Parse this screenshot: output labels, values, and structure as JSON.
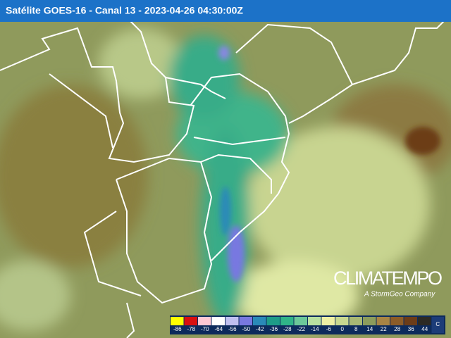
{
  "header": {
    "title": "Satélite GOES-16 - Canal 13 - 2023-04-26 04:30:00Z"
  },
  "brand": {
    "name": "CLIMATEMPO",
    "tagline": "A StormGeo Company"
  },
  "legend": {
    "unit": "C",
    "items": [
      {
        "label": "-86",
        "color": "#ffff00"
      },
      {
        "label": "-78",
        "color": "#d81010"
      },
      {
        "label": "-70",
        "color": "#ffc8d4"
      },
      {
        "label": "-64",
        "color": "#ffffff"
      },
      {
        "label": "-56",
        "color": "#c0c0f0"
      },
      {
        "label": "-50",
        "color": "#7878e0"
      },
      {
        "label": "-42",
        "color": "#2a8ab8"
      },
      {
        "label": "-36",
        "color": "#1e9c88"
      },
      {
        "label": "-28",
        "color": "#30b488"
      },
      {
        "label": "-22",
        "color": "#6cc89a"
      },
      {
        "label": "-14",
        "color": "#b8e0a0"
      },
      {
        "label": "-6",
        "color": "#eef0a4"
      },
      {
        "label": "0",
        "color": "#c8d890"
      },
      {
        "label": "8",
        "color": "#a8b874"
      },
      {
        "label": "14",
        "color": "#8c9c5c"
      },
      {
        "label": "22",
        "color": "#a88444"
      },
      {
        "label": "28",
        "color": "#8c5c28"
      },
      {
        "label": "36",
        "color": "#6c3c18"
      },
      {
        "label": "44",
        "color": "#2c2a24"
      }
    ]
  }
}
